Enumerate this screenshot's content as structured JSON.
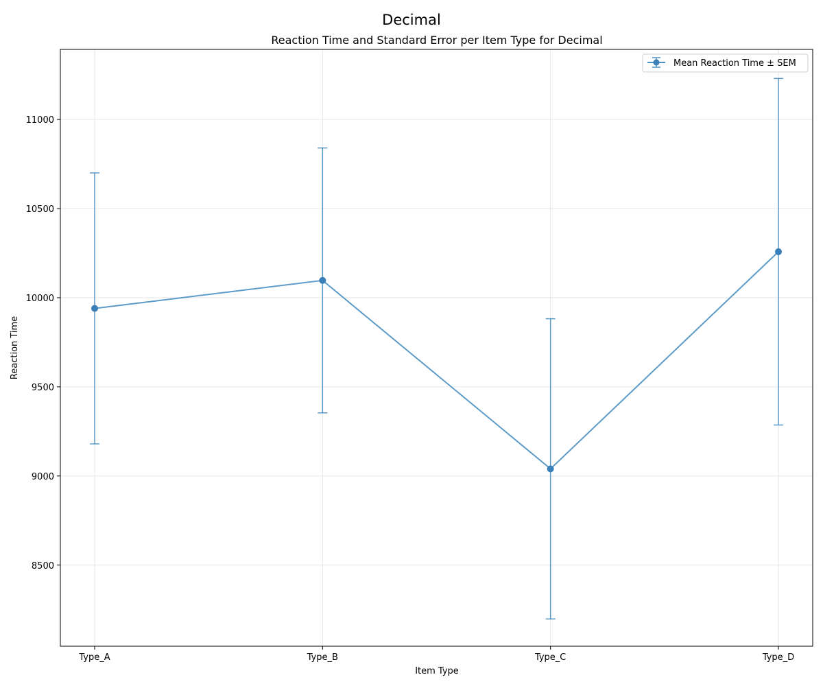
{
  "figure": {
    "suptitle": "Decimal"
  },
  "chart_data": {
    "type": "line",
    "title": "Reaction Time and Standard Error per Item Type for Decimal",
    "xlabel": "Item Type",
    "ylabel": "Reaction Time",
    "categories": [
      "Type_A",
      "Type_B",
      "Type_C",
      "Type_D"
    ],
    "series": [
      {
        "name": "Mean Reaction Time ± SEM",
        "values": [
          9940,
          10097,
          9040,
          10258
        ],
        "errors": [
          760,
          743,
          842,
          972
        ],
        "color": "#4a90c2"
      }
    ],
    "ylim": [
      8045,
      11393
    ],
    "yticks": [
      8500,
      9000,
      9500,
      10000,
      10500,
      11000
    ],
    "ytick_labels": [
      "8500",
      "9000",
      "9500",
      "10000",
      "10500",
      "11000"
    ],
    "grid": true,
    "legend": "top-right"
  }
}
